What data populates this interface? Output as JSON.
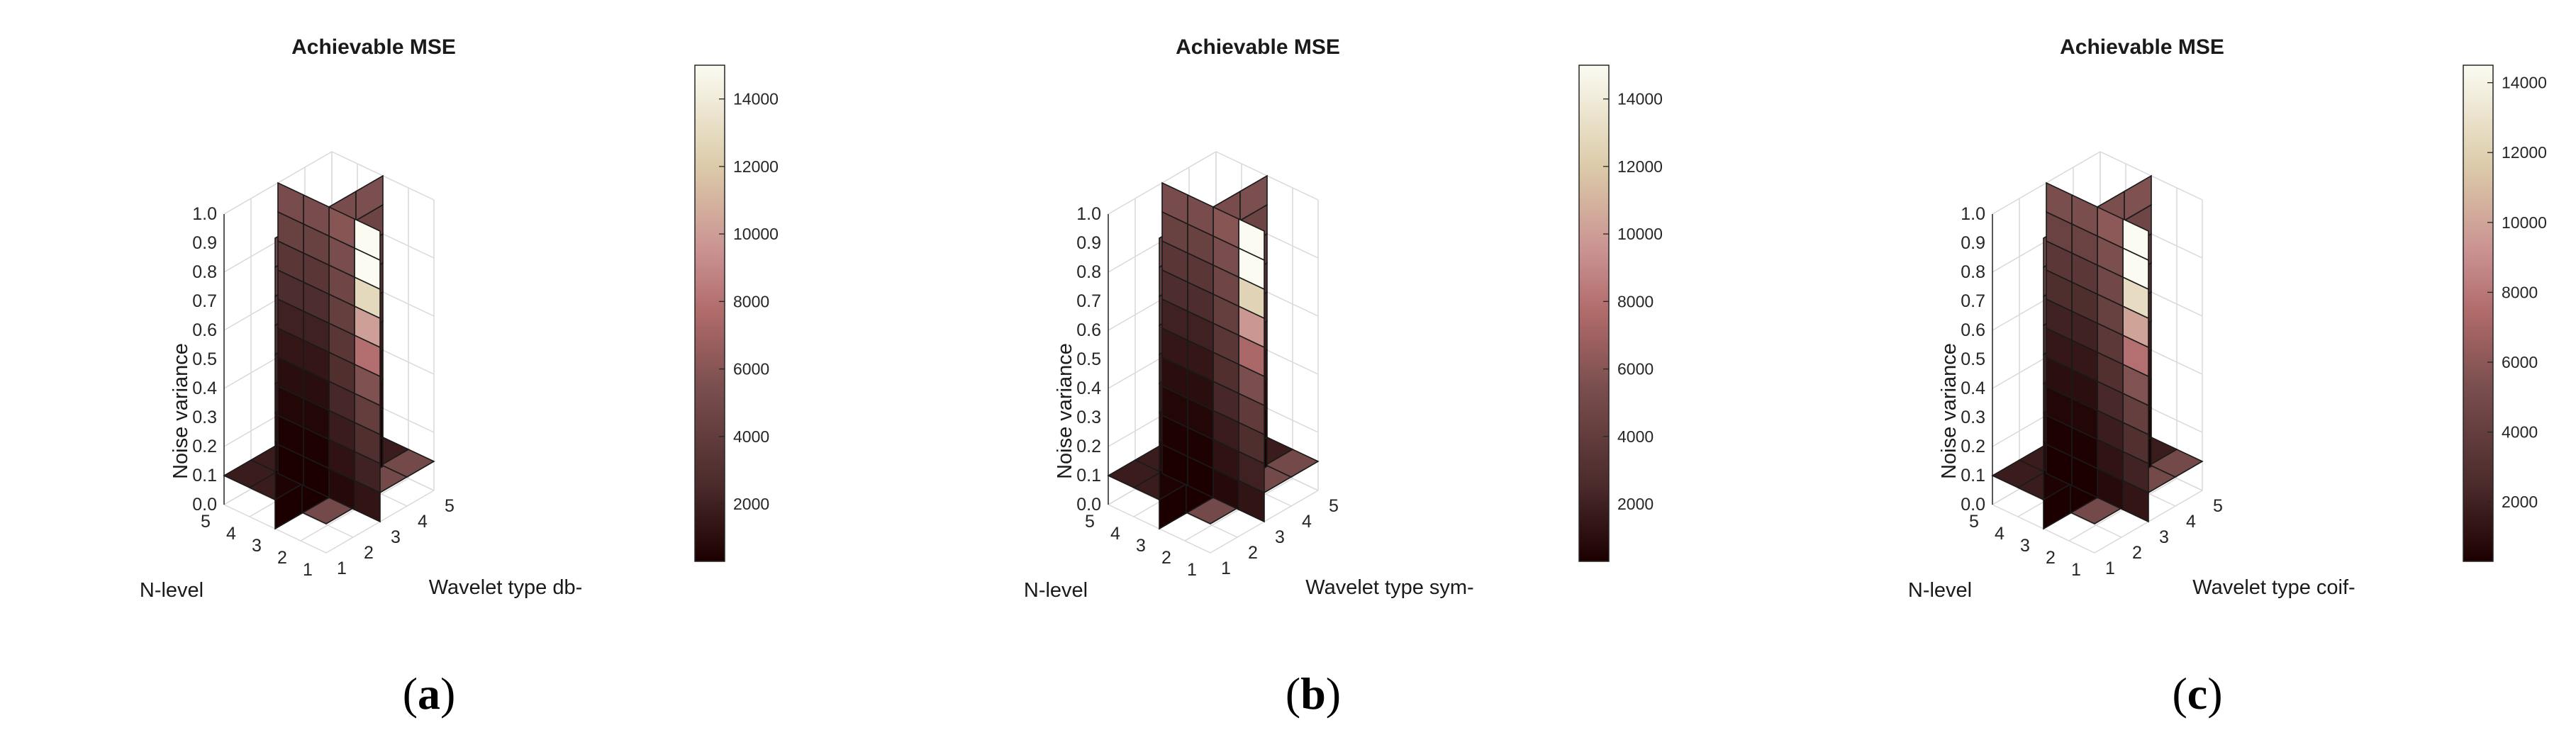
{
  "chart_data": [
    {
      "type": "surface3d",
      "panel_label": "(a)",
      "title": "Achievable MSE",
      "xlabel": "Wavelet type db-",
      "ylabel": "N-level",
      "zlabel": "Noise variance",
      "x_ticks": [
        "1",
        "2",
        "3",
        "4",
        "5"
      ],
      "y_ticks": [
        "1",
        "2",
        "3",
        "4",
        "5"
      ],
      "z_ticks": [
        "0.0",
        "0.1",
        "0.2",
        "0.3",
        "0.4",
        "0.5",
        "0.6",
        "0.7",
        "0.8",
        "0.9",
        "1.0"
      ],
      "colorbar_ticks": [
        "2000",
        "4000",
        "6000",
        "8000",
        "10000",
        "12000",
        "14000"
      ],
      "clim": [
        300,
        15000
      ],
      "x_slice_values": [
        5500,
        5800,
        6200,
        7000,
        8200,
        9800,
        11000,
        12500,
        14000
      ],
      "y_slice_values": [
        5200,
        5200,
        5300,
        5500
      ]
    },
    {
      "type": "surface3d",
      "panel_label": "(b)",
      "title": "Achievable MSE",
      "xlabel": "Wavelet type sym-",
      "ylabel": "N-level",
      "zlabel": "Noise variance",
      "x_ticks": [
        "1",
        "2",
        "3",
        "4",
        "5"
      ],
      "y_ticks": [
        "1",
        "2",
        "3",
        "4",
        "5"
      ],
      "z_ticks": [
        "0.0",
        "0.1",
        "0.2",
        "0.3",
        "0.4",
        "0.5",
        "0.6",
        "0.7",
        "0.8",
        "0.9",
        "1.0"
      ],
      "colorbar_ticks": [
        "2000",
        "4000",
        "6000",
        "8000",
        "10000",
        "12000",
        "14000"
      ],
      "clim": [
        300,
        15000
      ],
      "x_slice_values": [
        5300,
        5600,
        6000,
        6700,
        7800,
        9200,
        10600,
        12200,
        14000
      ],
      "y_slice_values": [
        5200,
        5200,
        5300,
        5500
      ]
    },
    {
      "type": "surface3d",
      "panel_label": "(c)",
      "title": "Achievable MSE",
      "xlabel": "Wavelet type coif-",
      "ylabel": "N-level",
      "zlabel": "Noise variance",
      "x_ticks": [
        "1",
        "2",
        "3",
        "4",
        "5"
      ],
      "y_ticks": [
        "1",
        "2",
        "3",
        "4",
        "5"
      ],
      "z_ticks": [
        "0.0",
        "0.1",
        "0.2",
        "0.3",
        "0.4",
        "0.5",
        "0.6",
        "0.7",
        "0.8",
        "0.9",
        "1.0"
      ],
      "colorbar_ticks": [
        "2000",
        "4000",
        "6000",
        "8000",
        "10000",
        "12000",
        "14000"
      ],
      "clim": [
        300,
        14500
      ],
      "x_slice_values": [
        5400,
        5700,
        6100,
        6900,
        8000,
        9500,
        10800,
        12300,
        13800
      ],
      "y_slice_values": [
        5200,
        5200,
        5300,
        5500
      ]
    }
  ]
}
